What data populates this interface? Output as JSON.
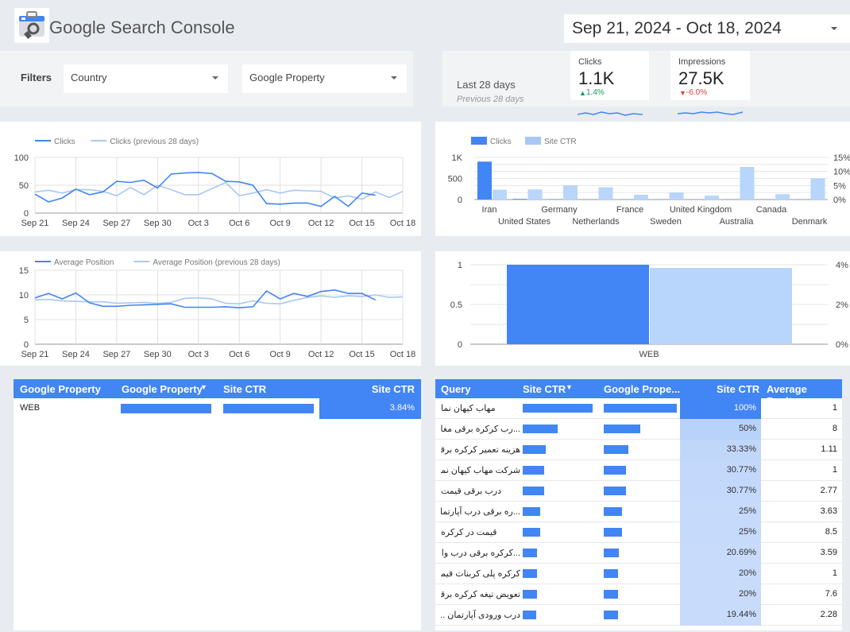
{
  "header": {
    "app_title": "Google Search Console",
    "logo_icon": "search-console-toolbox-icon",
    "date_range": "Sep 21, 2024 - Oct 18, 2024"
  },
  "filters": {
    "label": "Filters",
    "country_placeholder": "Country",
    "property_placeholder": "Google Property"
  },
  "scorecards": {
    "period_label": "Last 28 days",
    "previous_label": "Previous 28 days",
    "clicks": {
      "label": "Clicks",
      "value": "1.1K",
      "delta": "1.4%",
      "direction": "up"
    },
    "impressions": {
      "label": "Impressions",
      "value": "27.5K",
      "delta": "-6.0%",
      "direction": "down"
    }
  },
  "colors": {
    "primary": "#4285f4",
    "light": "#a8c7f5",
    "up": "#0f9d58",
    "down": "#db4437"
  },
  "chart_data": [
    {
      "type": "line",
      "legend": [
        "Clicks",
        "Clicks (previous 28 days)"
      ],
      "x_ticks": [
        "Sep 21",
        "Sep 24",
        "Sep 27",
        "Sep 30",
        "Oct 3",
        "Oct 6",
        "Oct 9",
        "Oct 12",
        "Oct 15",
        "Oct 18"
      ],
      "y_ticks": [
        "100",
        "50",
        "0"
      ],
      "ylim": [
        0,
        100
      ],
      "series": [
        {
          "name": "Clicks",
          "values": [
            34,
            20,
            27,
            43,
            33,
            38,
            57,
            55,
            59,
            45,
            70,
            72,
            73,
            71,
            57,
            56,
            50,
            17,
            16,
            18,
            18,
            12,
            30,
            12,
            36,
            32
          ]
        },
        {
          "name": "Clicks (previous 28 days)",
          "values": [
            38,
            41,
            36,
            42,
            42,
            39,
            31,
            46,
            33,
            50,
            42,
            33,
            33,
            44,
            55,
            31,
            36,
            42,
            36,
            41,
            40,
            39,
            27,
            31,
            25,
            38,
            28,
            39
          ]
        }
      ]
    },
    {
      "type": "bar",
      "legend": [
        "Clicks",
        "Site CTR"
      ],
      "categories_row1": [
        "Iran",
        "Germany",
        "France",
        "United Kingdom",
        "Canada"
      ],
      "categories_row2": [
        "United States",
        "Netherlands",
        "Sweden",
        "Australia",
        "Denmark"
      ],
      "categories": [
        "Iran",
        "United States",
        "Germany",
        "Netherlands",
        "France",
        "Sweden",
        "United Kingdom",
        "Australia",
        "Canada",
        "Denmark"
      ],
      "y_ticks_left": [
        "1K",
        "500",
        "0"
      ],
      "y_ticks_right": [
        "15%",
        "10%",
        "5%",
        "0%"
      ],
      "ylim": [
        0,
        1000
      ],
      "y2lim": [
        0,
        15
      ],
      "series": [
        {
          "name": "Clicks",
          "values": [
            900,
            15,
            10,
            5,
            5,
            5,
            5,
            5,
            5,
            5
          ]
        },
        {
          "name": "Site CTR",
          "values": [
            3.5,
            3.6,
            5.1,
            4.4,
            1.7,
            2.5,
            1.4,
            11.6,
            1.9,
            7.6
          ]
        }
      ]
    },
    {
      "type": "line",
      "legend": [
        "Average Position",
        "Average Position (previous 28 days)"
      ],
      "x_ticks": [
        "Sep 21",
        "Sep 24",
        "Sep 27",
        "Sep 30",
        "Oct 3",
        "Oct 6",
        "Oct 9",
        "Oct 12",
        "Oct 15",
        "Oct 18"
      ],
      "y_ticks": [
        "15",
        "10",
        "5",
        "0"
      ],
      "ylim": [
        0,
        15
      ],
      "series": [
        {
          "name": "Average Position",
          "values": [
            9.4,
            10.3,
            9.2,
            10.4,
            8.4,
            7.7,
            7.7,
            7.9,
            8.0,
            8.1,
            8.2,
            7.5,
            7.5,
            7.5,
            7.6,
            7.4,
            7.6,
            10.8,
            9.2,
            10.3,
            9.7,
            10.7,
            11.0,
            10.3,
            10.3,
            9.0
          ]
        },
        {
          "name": "Average Position (previous 28 days)",
          "values": [
            9.0,
            9.1,
            8.8,
            8.7,
            8.6,
            8.6,
            8.3,
            8.4,
            8.5,
            8.3,
            8.5,
            9.3,
            9.4,
            9.2,
            8.3,
            8.2,
            8.8,
            8.3,
            8.2,
            8.9,
            9.5,
            9.8,
            9.5,
            9.8,
            9.7,
            10.0,
            9.5,
            9.6
          ]
        }
      ]
    },
    {
      "type": "bar",
      "categories": [
        "WEB"
      ],
      "y_ticks_left": [
        "1",
        "0.5",
        "0"
      ],
      "y_ticks_right": [
        "4%",
        "2%",
        "0%"
      ],
      "ylim": [
        0,
        1
      ],
      "y2lim": [
        0,
        4
      ],
      "series": [
        {
          "name": "Clicks",
          "values": [
            1
          ]
        },
        {
          "name": "Site CTR",
          "values": [
            3.84
          ]
        }
      ]
    }
  ],
  "property_table": {
    "headers": [
      "Google Property",
      "Google Property",
      "Site CTR",
      "Site CTR"
    ],
    "rows": [
      {
        "name": "WEB",
        "ctr": "3.84%"
      }
    ]
  },
  "query_table": {
    "headers": [
      "Query",
      "Site CTR",
      "Google Prope...",
      "Site CTR",
      "Average Posit..."
    ],
    "rows": [
      {
        "query": "مهاب کیهان نما",
        "ctr_bar": 1.0,
        "prop_bar": 1.0,
        "ctr": "100%",
        "pos": "1"
      },
      {
        "query": "...رب کرکره برقی مغازه",
        "ctr_bar": 0.5,
        "prop_bar": 0.5,
        "ctr": "50%",
        "pos": "8"
      },
      {
        "query": "هزینه تعمیر کرکره برقی",
        "ctr_bar": 0.3333,
        "prop_bar": 0.3333,
        "ctr": "33.33%",
        "pos": "1.11"
      },
      {
        "query": "شرکت مهاب کیهان نما",
        "ctr_bar": 0.3077,
        "prop_bar": 0.3077,
        "ctr": "30.77%",
        "pos": "1"
      },
      {
        "query": "درب برقی قیمت",
        "ctr_bar": 0.3077,
        "prop_bar": 0.3077,
        "ctr": "30.77%",
        "pos": "2.77"
      },
      {
        "query": "...ره برقی درب آپارتمان",
        "ctr_bar": 0.25,
        "prop_bar": 0.25,
        "ctr": "25%",
        "pos": "3.63"
      },
      {
        "query": "قیمت در کرکره",
        "ctr_bar": 0.25,
        "prop_bar": 0.25,
        "ctr": "25%",
        "pos": "8.5"
      },
      {
        "query": "...کرکره برقی درب واحد",
        "ctr_bar": 0.2069,
        "prop_bar": 0.2069,
        "ctr": "20.69%",
        "pos": "3.59"
      },
      {
        "query": "کرکره پلی کربنات قیمت",
        "ctr_bar": 0.2,
        "prop_bar": 0.2,
        "ctr": "20%",
        "pos": "1"
      },
      {
        "query": "تعویض تیغه کرکره برقی",
        "ctr_bar": 0.2,
        "prop_bar": 0.2,
        "ctr": "20%",
        "pos": "7.6"
      },
      {
        "query": "درب ورودی آپارتمان ...",
        "ctr_bar": 0.1944,
        "prop_bar": 0.1944,
        "ctr": "19.44%",
        "pos": "2.28"
      }
    ]
  }
}
